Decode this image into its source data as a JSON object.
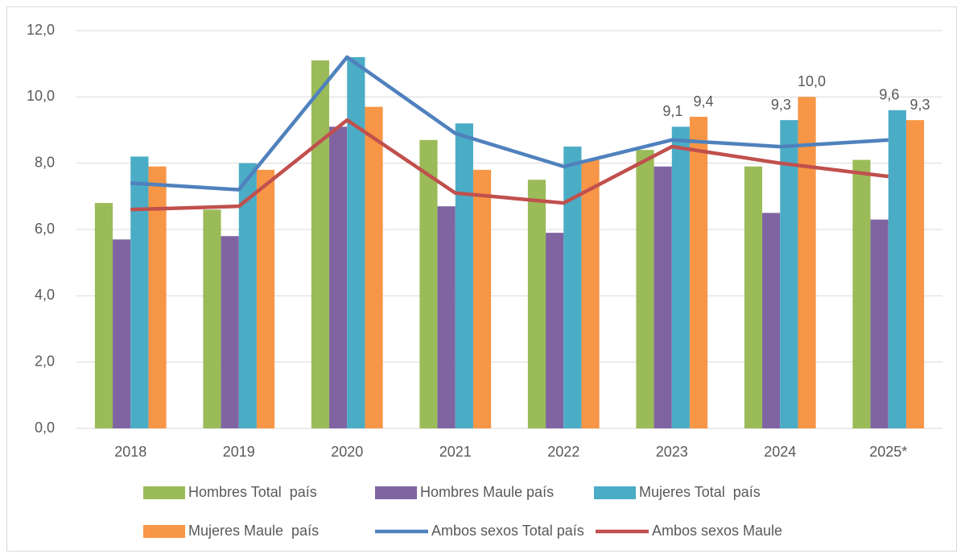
{
  "chart_data": {
    "type": "bar",
    "categories": [
      "2018",
      "2019",
      "2020",
      "2021",
      "2022",
      "2023",
      "2024",
      "2025*"
    ],
    "series": [
      {
        "name": "Hombres Total  país",
        "color": "#9bbb59",
        "values": [
          6.8,
          6.6,
          11.1,
          8.7,
          7.5,
          8.4,
          7.9,
          8.1
        ]
      },
      {
        "name": "Hombres Maule país",
        "color": "#8064a2",
        "values": [
          5.7,
          5.8,
          9.1,
          6.7,
          5.9,
          7.9,
          6.5,
          6.3
        ]
      },
      {
        "name": "Mujeres Total  país",
        "color": "#4bacc6",
        "values": [
          8.2,
          8.0,
          11.2,
          9.2,
          8.5,
          9.1,
          9.3,
          9.6
        ],
        "value_labels": [
          null,
          null,
          null,
          null,
          null,
          "9,1",
          "9,3",
          "9,6"
        ]
      },
      {
        "name": "Mujeres Maule  país",
        "color": "#f79646",
        "values": [
          7.9,
          7.8,
          9.7,
          7.8,
          8.1,
          9.4,
          10.0,
          9.3
        ],
        "value_labels": [
          null,
          null,
          null,
          null,
          null,
          "9,4",
          "10,0",
          "9,3"
        ]
      },
      {
        "name": "Ambos sexos Total país",
        "color": "#4f81bd",
        "type": "line",
        "values": [
          7.4,
          7.2,
          11.2,
          8.9,
          7.9,
          8.7,
          8.5,
          8.7
        ]
      },
      {
        "name": "Ambos sexos Maule",
        "color": "#c0504d",
        "type": "line",
        "values": [
          6.6,
          6.7,
          9.3,
          7.1,
          6.8,
          8.5,
          8.0,
          7.6
        ]
      }
    ],
    "ylim": [
      0,
      12
    ],
    "yticks": [
      {
        "value": 0,
        "label": "0,0"
      },
      {
        "value": 2,
        "label": "2,0"
      },
      {
        "value": 4,
        "label": "4,0"
      },
      {
        "value": 6,
        "label": "6,0"
      },
      {
        "value": 8,
        "label": "8,0"
      },
      {
        "value": 10,
        "label": "10,0"
      },
      {
        "value": 12,
        "label": "12,0"
      }
    ],
    "grid": true,
    "legend": "bottom"
  }
}
